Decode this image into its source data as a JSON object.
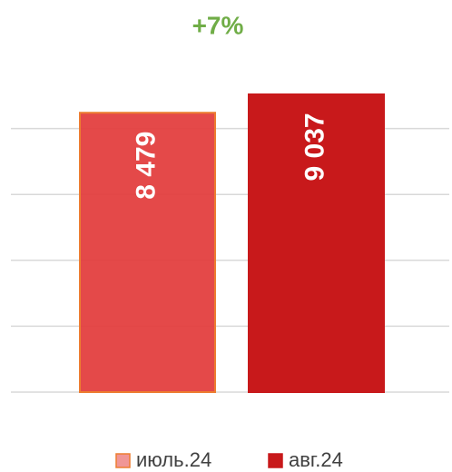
{
  "chart_data": {
    "type": "bar",
    "annotation": "+7%",
    "categories": [
      "июль.24",
      "авг.24"
    ],
    "values": [
      8479,
      9037
    ],
    "value_labels": [
      "8 479",
      "9 037"
    ],
    "colors": [
      "#e33f3f",
      "#c8191b"
    ],
    "edgecolors": [
      "#ed7d31",
      "#c8191b"
    ],
    "ylim": [
      0,
      10000
    ],
    "yticks": [
      0,
      2000,
      4000,
      6000,
      8000
    ],
    "grid": true,
    "legend": "bottom"
  }
}
